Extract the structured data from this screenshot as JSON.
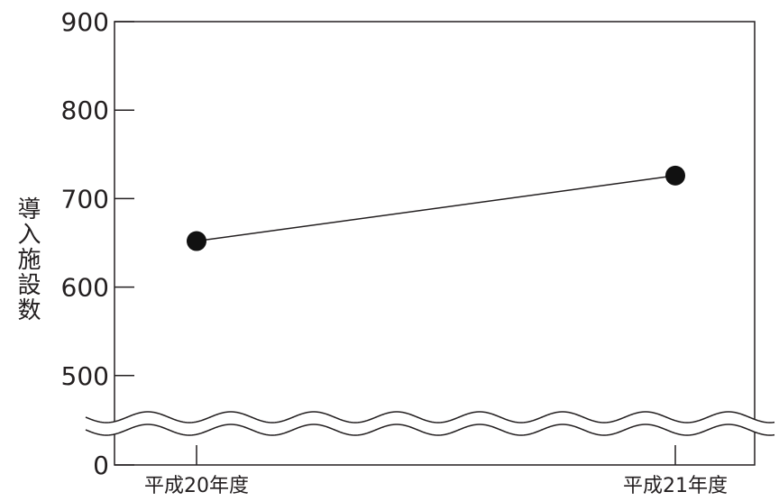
{
  "chart_data": {
    "type": "line",
    "categories": [
      "平成20年度",
      "平成21年度"
    ],
    "series": [
      {
        "values": [
          652,
          726
        ]
      }
    ],
    "ylabel": "導入施設数",
    "xlabel": "",
    "title": "",
    "y_ticks": [
      "0",
      "500",
      "600",
      "700",
      "800",
      "900"
    ],
    "ylim": [
      400,
      900
    ],
    "axis_break": true,
    "grid": false,
    "legend": "none"
  },
  "colors": {
    "ink": "#231f20",
    "background": "#ffffff"
  }
}
